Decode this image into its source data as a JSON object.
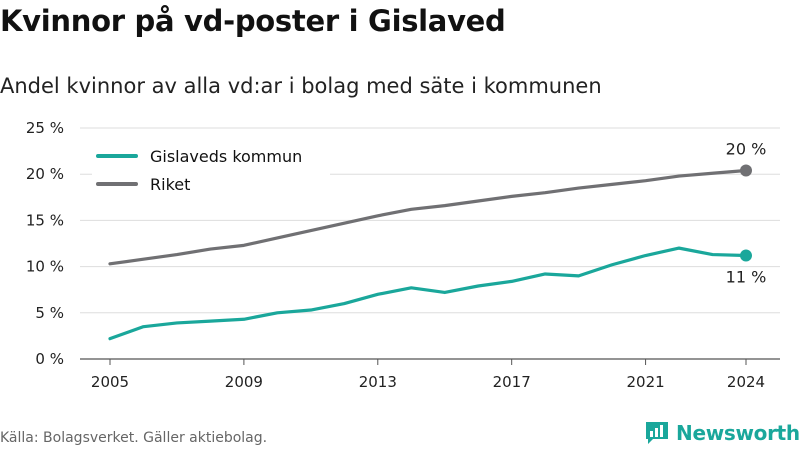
{
  "title": "Kvinnor på vd-poster i Gislaved",
  "subtitle": "Andel kvinnor av alla vd:ar i bolag med säte i kommunen",
  "source": "Källa: Bolagsverket. Gäller aktiebolag.",
  "brand": {
    "name": "Newsworthy",
    "logo_icon": "bar-chart-speech-bubble-icon"
  },
  "chart_data": {
    "type": "line",
    "x": [
      2005,
      2006,
      2007,
      2008,
      2009,
      2010,
      2011,
      2012,
      2013,
      2014,
      2015,
      2016,
      2017,
      2018,
      2019,
      2020,
      2021,
      2022,
      2023,
      2024
    ],
    "x_ticks": [
      "2005",
      "2009",
      "2013",
      "2017",
      "2021",
      "2024"
    ],
    "y_ticks": [
      "0 %",
      "5 %",
      "10 %",
      "15 %",
      "20 %",
      "25 %"
    ],
    "ylim": [
      0,
      25
    ],
    "grid": true,
    "legend_position": "top-left",
    "series": [
      {
        "name": "Gislaveds kommun",
        "color": "#1aa79b",
        "values": [
          2.2,
          3.5,
          3.9,
          4.1,
          4.3,
          5.0,
          5.3,
          6.0,
          7.0,
          7.7,
          7.2,
          7.9,
          8.4,
          9.2,
          9.0,
          10.2,
          11.2,
          12.0,
          11.3,
          11.2
        ],
        "end_label": "11 %"
      },
      {
        "name": "Riket",
        "color": "#707073",
        "values": [
          10.3,
          10.8,
          11.3,
          11.9,
          12.3,
          13.1,
          13.9,
          14.7,
          15.5,
          16.2,
          16.6,
          17.1,
          17.6,
          18.0,
          18.5,
          18.9,
          19.3,
          19.8,
          20.1,
          20.4
        ],
        "end_label": "20 %"
      }
    ]
  }
}
